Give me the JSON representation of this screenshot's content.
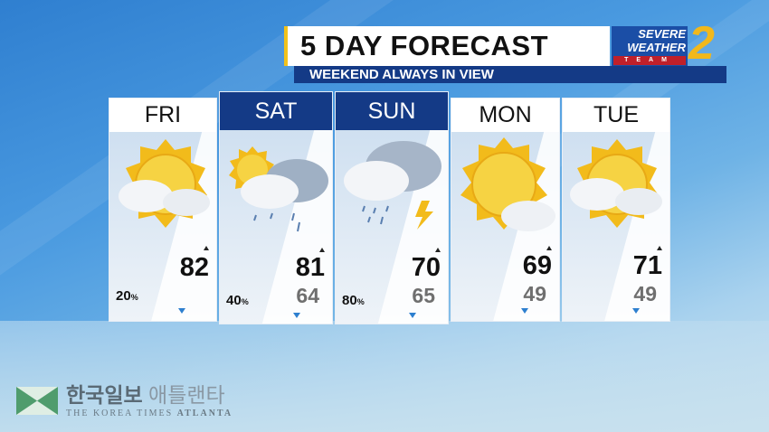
{
  "header": {
    "title": "5 DAY FORECAST",
    "subtitle": "WEEKEND ALWAYS IN VIEW"
  },
  "logo": {
    "line1": "SEVERE",
    "line2": "WEATHER",
    "line3": "TEAM",
    "channel": "2",
    "colors": {
      "blue": "#1b4ea6",
      "red": "#c0202a",
      "gold": "#f2b81b"
    }
  },
  "days": [
    {
      "day": "FRI",
      "high": "82",
      "low": "",
      "precip": "20",
      "unit": "%",
      "icon": "sun-clouds-icon",
      "weekend": false
    },
    {
      "day": "SAT",
      "high": "81",
      "low": "64",
      "precip": "40",
      "unit": "%",
      "icon": "sun-rain-cloud-icon",
      "weekend": true
    },
    {
      "day": "SUN",
      "high": "70",
      "low": "65",
      "precip": "80",
      "unit": "%",
      "icon": "thunderstorm-icon",
      "weekend": true
    },
    {
      "day": "MON",
      "high": "69",
      "low": "49",
      "precip": "",
      "unit": "",
      "icon": "sun-cloud-icon",
      "weekend": false
    },
    {
      "day": "TUE",
      "high": "71",
      "low": "49",
      "precip": "",
      "unit": "",
      "icon": "sun-clouds-icon",
      "weekend": false
    }
  ],
  "watermark": {
    "korean": "한국일보",
    "korean2": "애틀랜타",
    "english": "THE KOREA TIMES",
    "english2": "ATLANTA"
  }
}
